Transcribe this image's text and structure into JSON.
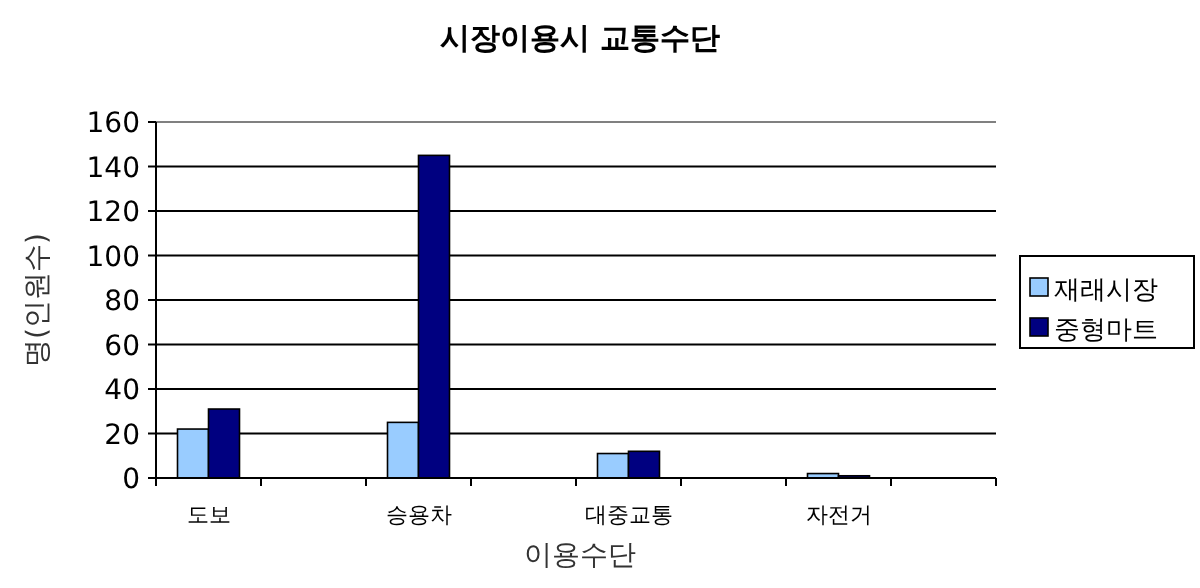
{
  "chart_data": {
    "type": "bar",
    "title": "시장이용시 교통수단",
    "xlabel": "이용수단",
    "ylabel": "명(인원수)",
    "categories": [
      "도보",
      null,
      "승용차",
      null,
      "대중교통",
      null,
      "자전거",
      null
    ],
    "series": [
      {
        "name": "재래시장",
        "color": "#99ccff",
        "values": [
          22,
          null,
          25,
          null,
          11,
          null,
          2,
          null
        ]
      },
      {
        "name": "중형마트",
        "color": "#000080",
        "values": [
          31,
          null,
          145,
          null,
          12,
          null,
          1,
          null
        ]
      }
    ],
    "ylim": [
      0,
      160
    ],
    "yticks": [
      0,
      20,
      40,
      60,
      80,
      100,
      120,
      140,
      160
    ],
    "grid": "y",
    "legend": "right"
  }
}
